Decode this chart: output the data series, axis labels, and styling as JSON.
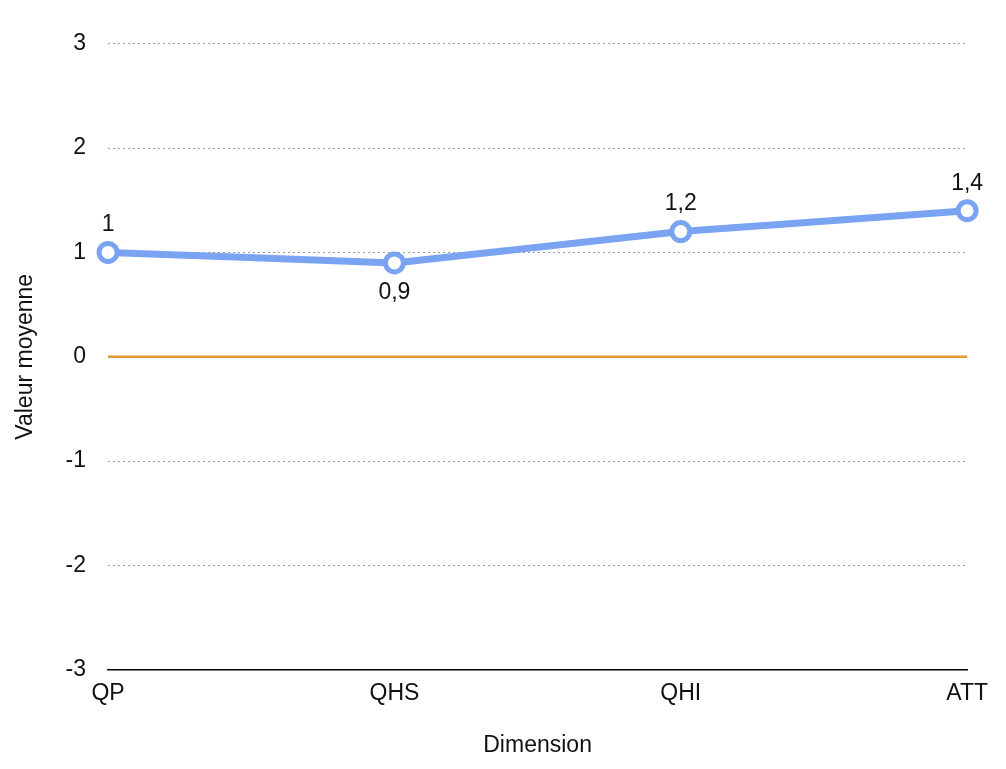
{
  "chart_data": {
    "type": "line",
    "xlabel": "Dimension",
    "ylabel": "Valeur moyenne",
    "categories": [
      "QP",
      "QHS",
      "QHI",
      "ATT"
    ],
    "series": [
      {
        "color": "#7aa3f2",
        "values": [
          1,
          0.9,
          1.2,
          1.4
        ],
        "value_labels": [
          "1",
          "0,9",
          "1,2",
          "1,4"
        ]
      }
    ],
    "ylim": [
      -3,
      3
    ],
    "yticks": [
      -3,
      -2,
      -1,
      0,
      1,
      2,
      3
    ],
    "grid": "y",
    "marker": "circle",
    "line_style": "solid",
    "ref_lines": [
      {
        "axis": "y",
        "value": 0,
        "color": "#e29a2e",
        "line_style": "solid"
      }
    ]
  }
}
